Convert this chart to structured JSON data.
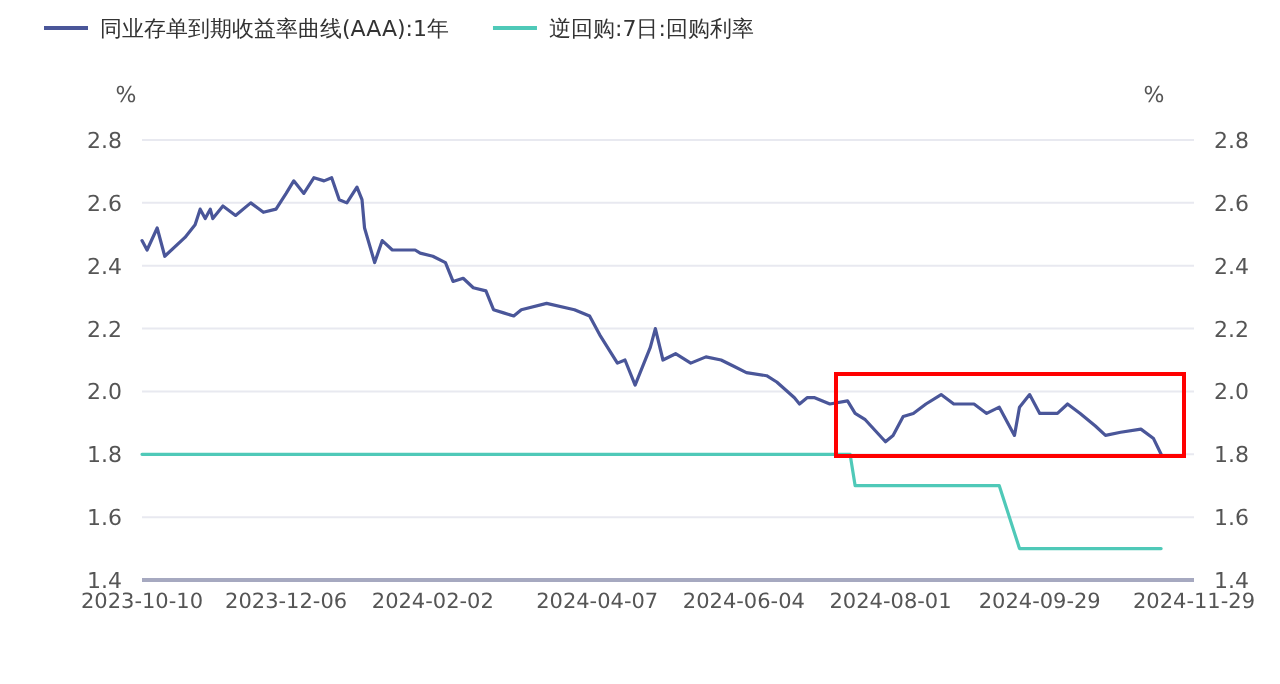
{
  "chart_data": {
    "type": "line",
    "ylabel": "%",
    "y2label": "%",
    "legend": "top left",
    "grid": "y",
    "marker": "none",
    "line_style": "solid",
    "xlim": [
      "2023-10-10",
      "2024-11-29"
    ],
    "xticks": [
      {
        "value": "2023-10-10",
        "label": "2023-10-10"
      },
      {
        "value": "2023-12-06",
        "label": "2023-12-06"
      },
      {
        "value": "2024-02-02",
        "label": "2024-02-02"
      },
      {
        "value": "2024-04-07",
        "label": "2024-04-07"
      },
      {
        "value": "2024-06-04",
        "label": "2024-06-04"
      },
      {
        "value": "2024-08-01",
        "label": "2024-08-01"
      },
      {
        "value": "2024-09-29",
        "label": "2024-09-29"
      },
      {
        "value": "2024-11-29",
        "label": "2024-11-29"
      }
    ],
    "ylim": [
      1.4,
      2.8
    ],
    "yticks": [
      1.4,
      1.6,
      1.8,
      {
        "value": 2,
        "label": "2.0"
      },
      2.2,
      2.4,
      2.6,
      2.8
    ],
    "y2lim": [
      1.4,
      2.8
    ],
    "y2ticks": [
      1.4,
      1.6,
      1.8,
      {
        "value": 2,
        "label": "2.0"
      },
      2.2,
      2.4,
      2.6,
      2.8
    ],
    "series": [
      {
        "name": "同业存单到期收益率曲线(AAA):1年",
        "color": "#4a5699",
        "x": [
          "2023-10-10",
          "2023-10-12",
          "2023-10-16",
          "2023-10-19",
          "2023-10-27",
          "2023-10-31",
          "2023-11-02",
          "2023-11-04",
          "2023-11-06",
          "2023-11-07",
          "2023-11-11",
          "2023-11-16",
          "2023-11-22",
          "2023-11-27",
          "2023-12-02",
          "2023-12-06",
          "2023-12-09",
          "2023-12-13",
          "2023-12-17",
          "2023-12-21",
          "2023-12-24",
          "2023-12-27",
          "2023-12-30",
          "2024-01-03",
          "2024-01-05",
          "2024-01-06",
          "2024-01-10",
          "2024-01-13",
          "2024-01-17",
          "2024-01-22",
          "2024-01-26",
          "2024-01-28",
          "2024-02-02",
          "2024-02-07",
          "2024-02-10",
          "2024-02-14",
          "2024-02-18",
          "2024-02-23",
          "2024-02-26",
          "2024-03-01",
          "2024-03-05",
          "2024-03-08",
          "2024-03-18",
          "2024-03-29",
          "2024-04-04",
          "2024-04-08",
          "2024-04-15",
          "2024-04-18",
          "2024-04-22",
          "2024-04-28",
          "2024-04-30",
          "2024-05-03",
          "2024-05-08",
          "2024-05-14",
          "2024-05-20",
          "2024-05-26",
          "2024-05-31",
          "2024-06-05",
          "2024-06-13",
          "2024-06-17",
          "2024-06-24",
          "2024-06-26",
          "2024-06-29",
          "2024-07-02",
          "2024-07-08",
          "2024-07-15",
          "2024-07-18",
          "2024-07-22",
          "2024-07-30",
          "2024-08-02",
          "2024-08-06",
          "2024-08-10",
          "2024-08-15",
          "2024-08-21",
          "2024-08-26",
          "2024-09-03",
          "2024-09-08",
          "2024-09-13",
          "2024-09-19",
          "2024-09-21",
          "2024-09-25",
          "2024-09-29",
          "2024-10-06",
          "2024-10-10",
          "2024-10-15",
          "2024-10-21",
          "2024-10-25",
          "2024-10-31",
          "2024-11-08",
          "2024-11-13",
          "2024-11-16"
        ],
        "values": [
          2.48,
          2.45,
          2.52,
          2.43,
          2.49,
          2.53,
          2.58,
          2.55,
          2.58,
          2.55,
          2.59,
          2.56,
          2.6,
          2.57,
          2.58,
          2.63,
          2.67,
          2.63,
          2.68,
          2.67,
          2.68,
          2.61,
          2.6,
          2.65,
          2.61,
          2.52,
          2.41,
          2.48,
          2.45,
          2.45,
          2.45,
          2.44,
          2.43,
          2.41,
          2.35,
          2.36,
          2.33,
          2.32,
          2.26,
          2.25,
          2.24,
          2.26,
          2.28,
          2.26,
          2.24,
          2.18,
          2.09,
          2.1,
          2.02,
          2.14,
          2.2,
          2.1,
          2.12,
          2.09,
          2.11,
          2.1,
          2.08,
          2.06,
          2.05,
          2.03,
          1.98,
          1.96,
          1.98,
          1.98,
          1.96,
          1.97,
          1.93,
          1.91,
          1.84,
          1.86,
          1.92,
          1.93,
          1.96,
          1.99,
          1.96,
          1.96,
          1.93,
          1.95,
          1.86,
          1.95,
          1.99,
          1.93,
          1.93,
          1.96,
          1.93,
          1.89,
          1.86,
          1.87,
          1.88,
          1.85,
          1.8
        ]
      },
      {
        "name": "逆回购:7日:回购利率",
        "color": "#4fc9b8",
        "x": [
          "2023-10-10",
          "2024-07-16",
          "2024-07-18",
          "2024-09-13",
          "2024-09-21",
          "2024-11-16"
        ],
        "values": [
          1.8,
          1.8,
          1.7,
          1.7,
          1.5,
          1.5
        ]
      }
    ]
  }
}
